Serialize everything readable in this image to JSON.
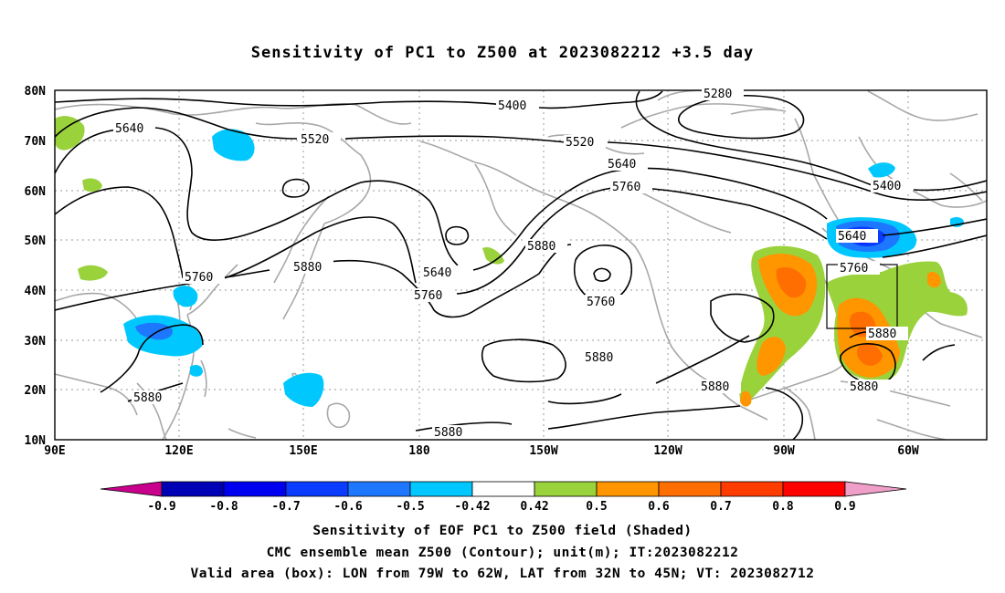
{
  "title": "Sensitivity of PC1 to Z500 at 2023082212 +3.5 day",
  "lat_labels": [
    "80N",
    "70N",
    "60N",
    "50N",
    "40N",
    "30N",
    "20N",
    "10N"
  ],
  "lon_labels": [
    "90E",
    "120E",
    "150E",
    "180",
    "150W",
    "120W",
    "90W",
    "60W"
  ],
  "contours": {
    "5280": "5280",
    "5400": "5400",
    "5520": "5520",
    "5640": "5640",
    "5760": "5760",
    "5880": "5880"
  },
  "colorbar": {
    "labels": [
      "-0.9",
      "-0.8",
      "-0.7",
      "-0.6",
      "-0.5",
      "-0.42",
      "0.42",
      "0.5",
      "0.6",
      "0.7",
      "0.8",
      "0.9"
    ],
    "colors": [
      "#0000b4",
      "#0000f0",
      "#0a3cff",
      "#1e78ff",
      "#00c8ff",
      "#ffffff",
      "#9ad23c",
      "#ff9600",
      "#ff6e00",
      "#ff3c00",
      "#ff0000"
    ],
    "low_end": "#c8008c",
    "high_end": "#f0a0c8"
  },
  "captions": {
    "line1": "Sensitivity of EOF PC1 to Z500 field (Shaded)",
    "line2": "CMC ensemble mean Z500 (Contour); unit(m); IT:2023082212",
    "line3": "Valid area (box): LON from 79W to 62W, LAT from 32N to 45N; VT: 2023082712"
  }
}
